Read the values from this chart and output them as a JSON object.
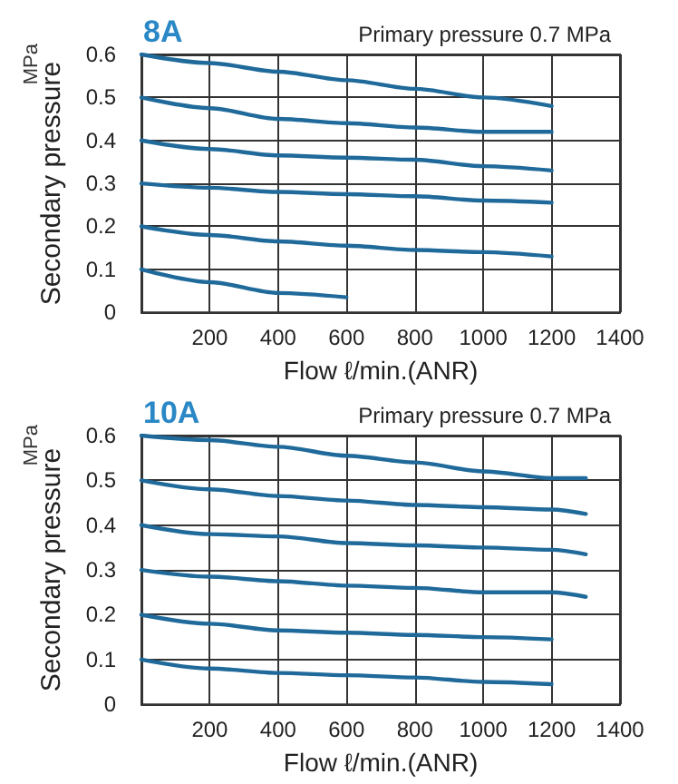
{
  "chart_data": [
    {
      "type": "line",
      "title": "8A",
      "subtitle": "Primary pressure 0.7 MPa",
      "xlabel": "Flow ℓ/min.(ANR)",
      "ylabel": "Secondary pressure",
      "annotations": [
        "MPa"
      ],
      "xlim": [
        0,
        1400
      ],
      "xticks": [
        200,
        400,
        600,
        800,
        1000,
        1200,
        1400
      ],
      "ylim": [
        0,
        0.6
      ],
      "yticks": [
        0,
        0.1,
        0.2,
        0.3,
        0.4,
        0.5,
        0.6
      ],
      "grid": true,
      "marker": "none",
      "line_style": "solid",
      "series": [
        {
          "color": "#1f6a9a",
          "x": [
            0,
            200,
            400,
            600,
            800,
            1000,
            1200
          ],
          "values": [
            0.6,
            0.58,
            0.56,
            0.54,
            0.52,
            0.5,
            0.48
          ]
        },
        {
          "color": "#1f6a9a",
          "x": [
            0,
            200,
            400,
            600,
            800,
            1000,
            1200
          ],
          "values": [
            0.5,
            0.475,
            0.45,
            0.44,
            0.43,
            0.42,
            0.42
          ]
        },
        {
          "color": "#1f6a9a",
          "x": [
            0,
            200,
            400,
            600,
            800,
            1000,
            1200
          ],
          "values": [
            0.4,
            0.38,
            0.365,
            0.36,
            0.355,
            0.34,
            0.33
          ]
        },
        {
          "color": "#1f6a9a",
          "x": [
            0,
            200,
            400,
            600,
            800,
            1000,
            1200
          ],
          "values": [
            0.3,
            0.29,
            0.28,
            0.275,
            0.27,
            0.26,
            0.255
          ]
        },
        {
          "color": "#1f6a9a",
          "x": [
            0,
            200,
            400,
            600,
            800,
            1000,
            1200
          ],
          "values": [
            0.2,
            0.18,
            0.165,
            0.155,
            0.145,
            0.14,
            0.13
          ]
        },
        {
          "color": "#1f6a9a",
          "x": [
            0,
            200,
            400,
            600
          ],
          "values": [
            0.1,
            0.07,
            0.045,
            0.035
          ]
        }
      ]
    },
    {
      "type": "line",
      "title": "10A",
      "subtitle": "Primary pressure 0.7 MPa",
      "xlabel": "Flow ℓ/min.(ANR)",
      "ylabel": "Secondary pressure",
      "annotations": [
        "MPa"
      ],
      "xlim": [
        0,
        1400
      ],
      "xticks": [
        200,
        400,
        600,
        800,
        1000,
        1200,
        1400
      ],
      "ylim": [
        0,
        0.6
      ],
      "yticks": [
        0,
        0.1,
        0.2,
        0.3,
        0.4,
        0.5,
        0.6
      ],
      "grid": true,
      "marker": "none",
      "line_style": "solid",
      "series": [
        {
          "color": "#1f6a9a",
          "x": [
            0,
            200,
            400,
            600,
            800,
            1000,
            1200,
            1300
          ],
          "values": [
            0.6,
            0.59,
            0.575,
            0.555,
            0.54,
            0.52,
            0.505,
            0.505
          ]
        },
        {
          "color": "#1f6a9a",
          "x": [
            0,
            200,
            400,
            600,
            800,
            1000,
            1200,
            1300
          ],
          "values": [
            0.5,
            0.48,
            0.465,
            0.455,
            0.445,
            0.44,
            0.435,
            0.425
          ]
        },
        {
          "color": "#1f6a9a",
          "x": [
            0,
            200,
            400,
            600,
            800,
            1000,
            1200,
            1300
          ],
          "values": [
            0.4,
            0.38,
            0.375,
            0.36,
            0.355,
            0.35,
            0.345,
            0.335
          ]
        },
        {
          "color": "#1f6a9a",
          "x": [
            0,
            200,
            400,
            600,
            800,
            1000,
            1200,
            1300
          ],
          "values": [
            0.3,
            0.285,
            0.275,
            0.265,
            0.26,
            0.25,
            0.25,
            0.24
          ]
        },
        {
          "color": "#1f6a9a",
          "x": [
            0,
            200,
            400,
            600,
            800,
            1000,
            1200
          ],
          "values": [
            0.2,
            0.18,
            0.165,
            0.16,
            0.155,
            0.15,
            0.145
          ]
        },
        {
          "color": "#1f6a9a",
          "x": [
            0,
            200,
            400,
            600,
            800,
            1000,
            1200
          ],
          "values": [
            0.1,
            0.08,
            0.07,
            0.065,
            0.06,
            0.05,
            0.045
          ]
        }
      ]
    }
  ]
}
